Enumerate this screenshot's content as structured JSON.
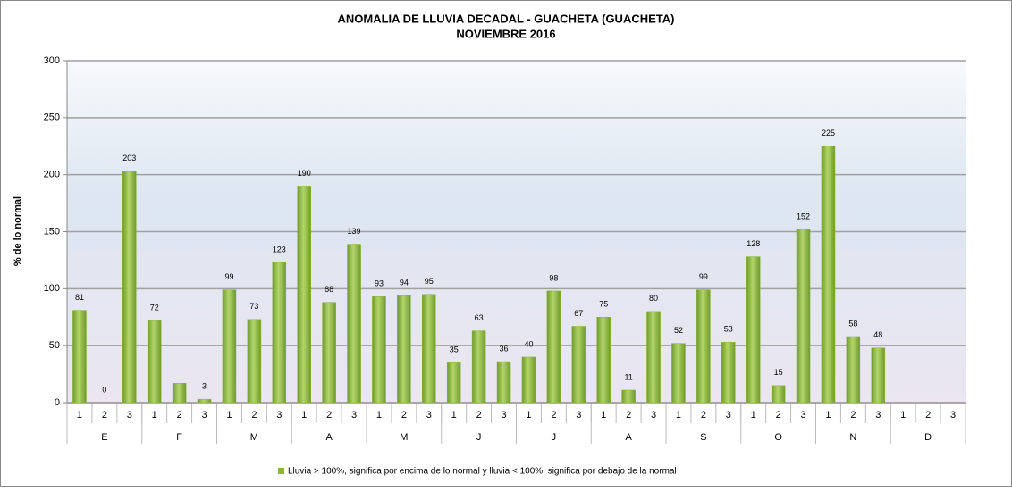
{
  "chart_data": {
    "type": "bar",
    "title": "ANOMALIA DE LLUVIA DECADAL - GUACHETA  (GUACHETA)",
    "subtitle": "NOVIEMBRE 2016",
    "y_label": "% de lo normal",
    "categories": [
      "1",
      "2",
      "3",
      "1",
      "2",
      "3",
      "1",
      "2",
      "3",
      "1",
      "2",
      "3",
      "1",
      "2",
      "3",
      "1",
      "2",
      "3",
      "1",
      "2",
      "3",
      "1",
      "2",
      "3",
      "1",
      "2",
      "3",
      "1",
      "2",
      "3",
      "1",
      "2",
      "3",
      "1",
      "2",
      "3"
    ],
    "groups": [
      "E",
      "F",
      "M",
      "A",
      "M",
      "J",
      "J",
      "A",
      "S",
      "O",
      "N",
      "D"
    ],
    "series": [
      {
        "name": "Lluvia > 100%, significa por encima de lo normal y lluvia < 100%, significa por debajo de la normal",
        "color": "#8db43e",
        "values": [
          81,
          0,
          203,
          72,
          17,
          3,
          99,
          73,
          123,
          190,
          88,
          139,
          93,
          94,
          95,
          35,
          63,
          36,
          40,
          98,
          67,
          75,
          11,
          80,
          52,
          99,
          53,
          128,
          15,
          152,
          225,
          58,
          48,
          null,
          null,
          null
        ],
        "value_labels": [
          "81",
          "0",
          "203",
          "72",
          null,
          "3",
          "99",
          "73",
          "123",
          "190",
          "88",
          "139",
          "93",
          "94",
          "95",
          "35",
          "63",
          "36",
          "40",
          "98",
          "67",
          "75",
          "11",
          "80",
          "52",
          "99",
          "53",
          "128",
          "15",
          "152",
          "225",
          "58",
          "48",
          null,
          null,
          null
        ]
      }
    ],
    "ylim": [
      0,
      300
    ],
    "yticks": [
      0,
      50,
      100,
      150,
      200,
      250,
      300
    ],
    "grid": true
  }
}
